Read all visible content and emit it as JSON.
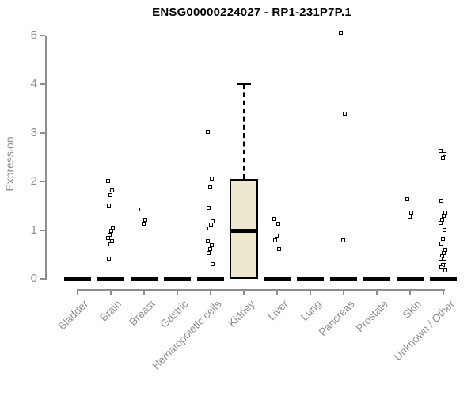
{
  "colors": {
    "axis": "#8f8f8f",
    "box_fill": "#EDE8CE",
    "data": "#000000",
    "background": "#ffffff",
    "title_text": "#000000"
  },
  "chart_data": {
    "type": "boxplot",
    "title": "ENSG00000224027 - RP1-231P7P.1",
    "ylabel": "Expression",
    "xlabel": "",
    "ylim": [
      0,
      5
    ],
    "yticks": [
      0,
      1,
      2,
      3,
      4,
      5
    ],
    "grid": "off",
    "legend": "none",
    "categories": [
      "Bladder",
      "Brain",
      "Breast",
      "Gastric",
      "Hematopoietic cells",
      "Kidney",
      "Liver",
      "Lung",
      "Pancreas",
      "Prostate",
      "Skin",
      "Unknown / Other"
    ],
    "series": [
      {
        "category": "Bladder",
        "zero_bar": true,
        "points": []
      },
      {
        "category": "Brain",
        "zero_bar": true,
        "points": [
          2.0,
          1.8,
          1.71,
          1.5,
          1.04,
          0.97,
          0.9,
          0.83,
          0.76,
          0.7,
          0.4
        ]
      },
      {
        "category": "Breast",
        "zero_bar": true,
        "points": [
          1.42,
          1.2,
          1.12
        ]
      },
      {
        "category": "Gastric",
        "zero_bar": true,
        "points": []
      },
      {
        "category": "Hematopoietic cells",
        "zero_bar": true,
        "points": [
          3.02,
          2.05,
          1.88,
          1.45,
          1.18,
          1.1,
          1.02,
          0.76,
          0.68,
          0.6,
          0.52,
          0.3
        ]
      },
      {
        "category": "Kidney",
        "zero_bar": false,
        "box": {
          "whisker_low": 0,
          "q1": 0,
          "median": 1.0,
          "q3": 2.05,
          "whisker_high": 4.0
        },
        "points": []
      },
      {
        "category": "Liver",
        "zero_bar": true,
        "points": [
          1.22,
          1.12,
          0.88,
          0.78,
          0.6
        ]
      },
      {
        "category": "Lung",
        "zero_bar": true,
        "points": []
      },
      {
        "category": "Pancreas",
        "zero_bar": true,
        "points": [
          5.05,
          3.38,
          0.78
        ]
      },
      {
        "category": "Prostate",
        "zero_bar": true,
        "points": []
      },
      {
        "category": "Skin",
        "zero_bar": true,
        "points": [
          1.63,
          1.35,
          1.27
        ]
      },
      {
        "category": "Unknown / Other",
        "zero_bar": true,
        "points": [
          2.62,
          2.56,
          2.47,
          1.6,
          1.35,
          1.28,
          1.21,
          1.14,
          1.0,
          0.82,
          0.72,
          0.58,
          0.52,
          0.46,
          0.4,
          0.34,
          0.28,
          0.22,
          0.16
        ]
      }
    ]
  }
}
